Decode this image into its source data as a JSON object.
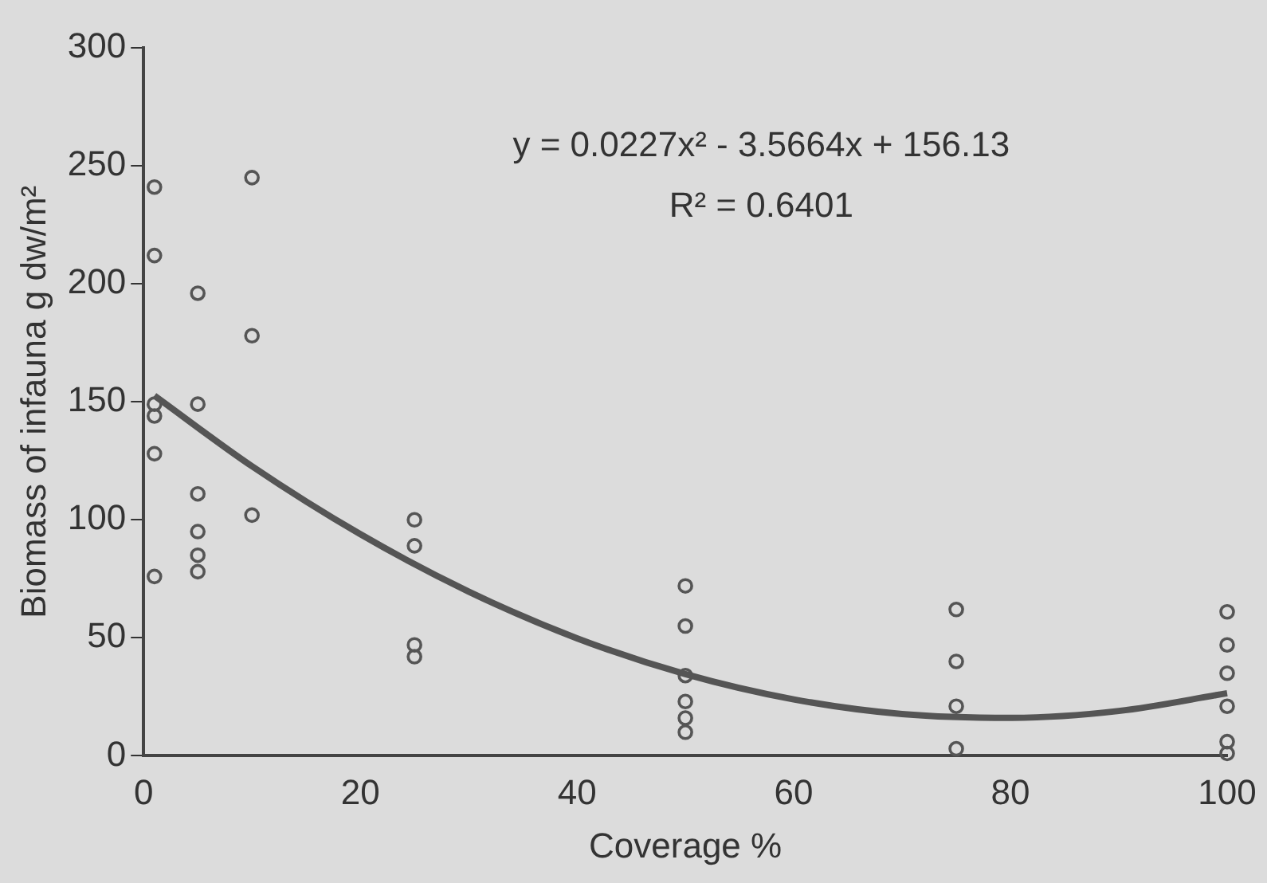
{
  "chart_data": {
    "type": "scatter",
    "xlabel": "Coverage %",
    "ylabel": "Biomass of infauna g dw/m²",
    "xlim": [
      0,
      100
    ],
    "xticks": [
      0,
      20,
      40,
      60,
      80,
      100
    ],
    "ylim": [
      0,
      300
    ],
    "yticks": [
      0,
      50,
      100,
      150,
      200,
      250,
      300
    ],
    "grid": false,
    "legend": false,
    "marker": "circle",
    "annotations": [
      "y = 0.0227x² - 3.5664x + 156.13",
      "R² = 0.6401"
    ],
    "series": [
      {
        "color": "#555555",
        "x": [
          1,
          1,
          1,
          1,
          1,
          1,
          5,
          5,
          5,
          5,
          5,
          5,
          10,
          10,
          10,
          25,
          25,
          25,
          25,
          50,
          50,
          50,
          50,
          50,
          50,
          75,
          75,
          75,
          75,
          100,
          100,
          100,
          100,
          100,
          100
        ],
        "values": [
          241,
          212,
          149,
          144,
          128,
          76,
          196,
          149,
          111,
          95,
          85,
          78,
          245,
          178,
          102,
          100,
          89,
          47,
          42,
          72,
          55,
          34,
          23,
          16,
          10,
          62,
          40,
          21,
          3,
          61,
          47,
          35,
          21,
          6,
          1
        ]
      },
      {
        "type": "line",
        "color": "#555555",
        "line_style": "solid",
        "marker": "none",
        "x": [
          1,
          10,
          20,
          30,
          40,
          50,
          60,
          70,
          80,
          90,
          100
        ],
        "values": [
          152.6,
          122.7,
          93.9,
          69.6,
          49.8,
          34.6,
          23.9,
          17.7,
          16.1,
          19.0,
          26.5
        ]
      }
    ]
  }
}
